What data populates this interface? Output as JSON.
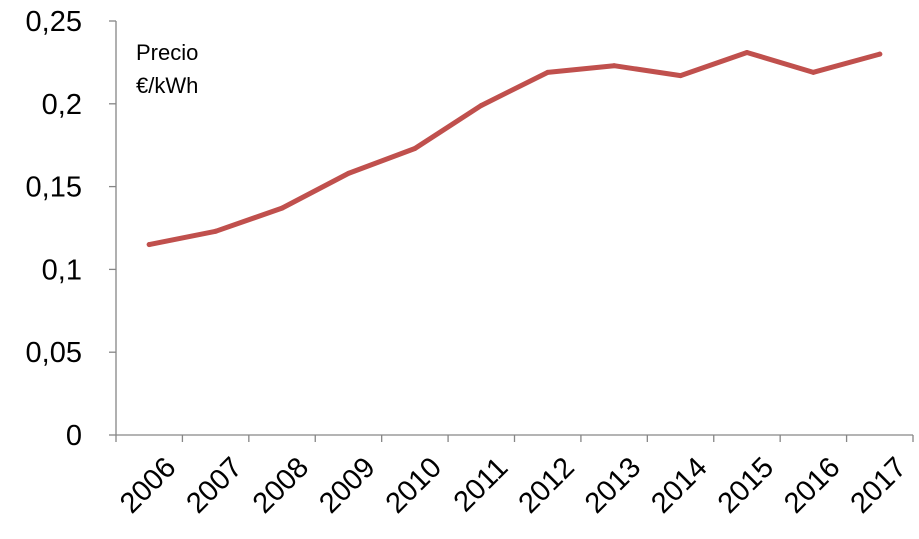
{
  "chart_data": {
    "type": "line",
    "title": "",
    "xlabel": "",
    "ylabel": "",
    "annotation": {
      "line1": "Precio",
      "line2": "€/kWh"
    },
    "categories": [
      "2006",
      "2007",
      "2008",
      "2009",
      "2010",
      "2011",
      "2012",
      "2013",
      "2014",
      "2015",
      "2016",
      "2017"
    ],
    "series": [
      {
        "values": [
          0.115,
          0.123,
          0.137,
          0.158,
          0.173,
          0.199,
          0.219,
          0.223,
          0.217,
          0.231,
          0.219,
          0.23
        ],
        "color": "#c0504d"
      }
    ],
    "ylim": [
      0,
      0.25
    ],
    "yticks": [
      0,
      0.05,
      0.1,
      0.15,
      0.2,
      0.25
    ],
    "ytick_labels": [
      "0",
      "0,05",
      "0,1",
      "0,15",
      "0,2",
      "0,25"
    ],
    "grid": false,
    "legend": "none"
  }
}
